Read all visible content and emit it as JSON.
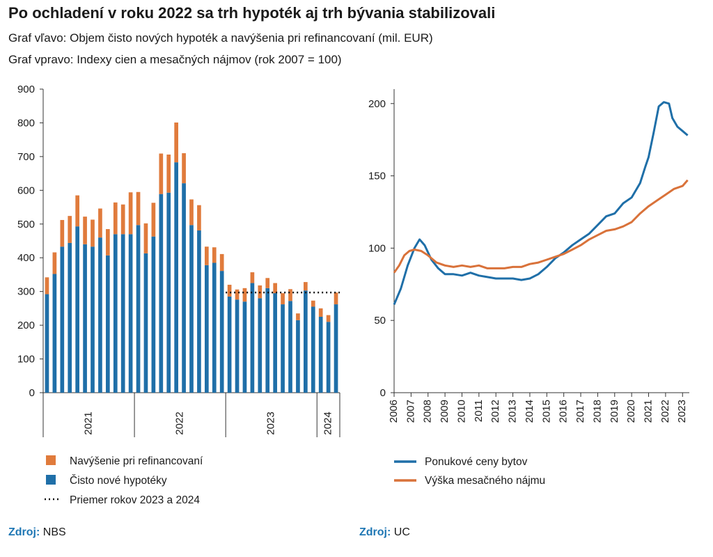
{
  "title": "Po ochladení v roku 2022 sa trh hypoték aj trh bývania stabilizovali",
  "subtitle_left": "Graf vľavo: Objem čisto nových hypoték a navýšenia pri refinancovaní (mil. EUR)",
  "subtitle_right": "Graf vpravo: Indexy cien a mesačných nájmov (rok 2007 = 100)",
  "colors": {
    "new": "#1f6fa8",
    "refi": "#e07b3c",
    "offer": "#1f6fa8",
    "rent": "#d9723a"
  },
  "chart_data": [
    {
      "type": "bar",
      "stacked": true,
      "ylim": [
        0,
        900
      ],
      "yticks": [
        0,
        100,
        200,
        300,
        400,
        500,
        600,
        700,
        800,
        900
      ],
      "year_groups": [
        {
          "label": "2021",
          "count": 12
        },
        {
          "label": "2022",
          "count": 12
        },
        {
          "label": "2023",
          "count": 12
        },
        {
          "label": "2024",
          "count": 3
        }
      ],
      "series": [
        {
          "name": "Čisto nové hypotéky",
          "values": [
            292,
            352,
            433,
            444,
            493,
            440,
            433,
            460,
            407,
            470,
            470,
            470,
            497,
            413,
            463,
            589,
            593,
            683,
            621,
            497,
            481,
            378,
            385,
            361,
            285,
            276,
            270,
            325,
            280,
            310,
            295,
            262,
            272,
            215,
            303,
            255,
            225,
            210,
            262
          ]
        },
        {
          "name": "Navýšenie pri refinancovaní",
          "values": [
            50,
            64,
            79,
            80,
            92,
            82,
            80,
            86,
            78,
            94,
            88,
            124,
            98,
            89,
            100,
            120,
            113,
            118,
            89,
            76,
            75,
            55,
            46,
            50,
            35,
            30,
            40,
            32,
            38,
            30,
            30,
            33,
            35,
            20,
            25,
            18,
            25,
            20,
            35
          ]
        }
      ],
      "average": {
        "name": "Priemer rokov 2023 a 2024",
        "value": 297
      },
      "legend": [
        "Navýšenie pri refinancovaní",
        "Čisto nové hypotéky",
        "Priemer rokov 2023 a 2024"
      ],
      "source_label": "Zdroj:",
      "source": "NBS"
    },
    {
      "type": "line",
      "ylim": [
        0,
        210
      ],
      "yticks": [
        0,
        50,
        100,
        150,
        200
      ],
      "xticks": [
        "2006",
        "2007",
        "2008",
        "2009",
        "2010",
        "2011",
        "2012",
        "2013",
        "2014",
        "2015",
        "2016",
        "2017",
        "2018",
        "2019",
        "2020",
        "2021",
        "2022",
        "2023"
      ],
      "series": [
        {
          "name": "Ponukové ceny bytov",
          "points": [
            [
              2006,
              61
            ],
            [
              2006.4,
              72
            ],
            [
              2006.8,
              88
            ],
            [
              2007.2,
              100
            ],
            [
              2007.5,
              106
            ],
            [
              2007.8,
              102
            ],
            [
              2008.2,
              92
            ],
            [
              2008.6,
              86
            ],
            [
              2009.0,
              82
            ],
            [
              2009.5,
              82
            ],
            [
              2010.0,
              81
            ],
            [
              2010.5,
              83
            ],
            [
              2011.0,
              81
            ],
            [
              2011.5,
              80
            ],
            [
              2012.0,
              79
            ],
            [
              2012.5,
              79
            ],
            [
              2013.0,
              79
            ],
            [
              2013.5,
              78
            ],
            [
              2014.0,
              79
            ],
            [
              2014.5,
              82
            ],
            [
              2015.0,
              87
            ],
            [
              2015.5,
              93
            ],
            [
              2016.0,
              97
            ],
            [
              2016.5,
              102
            ],
            [
              2017.0,
              106
            ],
            [
              2017.5,
              110
            ],
            [
              2018.0,
              116
            ],
            [
              2018.5,
              122
            ],
            [
              2019.0,
              124
            ],
            [
              2019.5,
              131
            ],
            [
              2020.0,
              135
            ],
            [
              2020.5,
              145
            ],
            [
              2020.8,
              156
            ],
            [
              2021.0,
              163
            ],
            [
              2021.3,
              180
            ],
            [
              2021.6,
              198
            ],
            [
              2021.9,
              201
            ],
            [
              2022.2,
              200
            ],
            [
              2022.4,
              190
            ],
            [
              2022.7,
              184
            ],
            [
              2023.0,
              181
            ],
            [
              2023.3,
              178
            ]
          ]
        },
        {
          "name": "Výška mesačného nájmu",
          "points": [
            [
              2006,
              83
            ],
            [
              2006.3,
              88
            ],
            [
              2006.6,
              95
            ],
            [
              2006.9,
              98
            ],
            [
              2007.2,
              99
            ],
            [
              2007.6,
              98
            ],
            [
              2008.0,
              95
            ],
            [
              2008.5,
              90
            ],
            [
              2009.0,
              88
            ],
            [
              2009.5,
              87
            ],
            [
              2010.0,
              88
            ],
            [
              2010.5,
              87
            ],
            [
              2011.0,
              88
            ],
            [
              2011.5,
              86
            ],
            [
              2012.0,
              86
            ],
            [
              2012.5,
              86
            ],
            [
              2013.0,
              87
            ],
            [
              2013.5,
              87
            ],
            [
              2014.0,
              89
            ],
            [
              2014.5,
              90
            ],
            [
              2015.0,
              92
            ],
            [
              2015.5,
              94
            ],
            [
              2016.0,
              96
            ],
            [
              2016.5,
              99
            ],
            [
              2017.0,
              102
            ],
            [
              2017.5,
              106
            ],
            [
              2018.0,
              109
            ],
            [
              2018.5,
              112
            ],
            [
              2019.0,
              113
            ],
            [
              2019.5,
              115
            ],
            [
              2020.0,
              118
            ],
            [
              2020.5,
              124
            ],
            [
              2021.0,
              129
            ],
            [
              2021.5,
              133
            ],
            [
              2022.0,
              137
            ],
            [
              2022.5,
              141
            ],
            [
              2023.0,
              143
            ],
            [
              2023.3,
              147
            ]
          ]
        }
      ],
      "legend": [
        "Ponukové ceny bytov",
        "Výška mesačného nájmu"
      ],
      "source_label": "Zdroj:",
      "source": "UC"
    }
  ]
}
